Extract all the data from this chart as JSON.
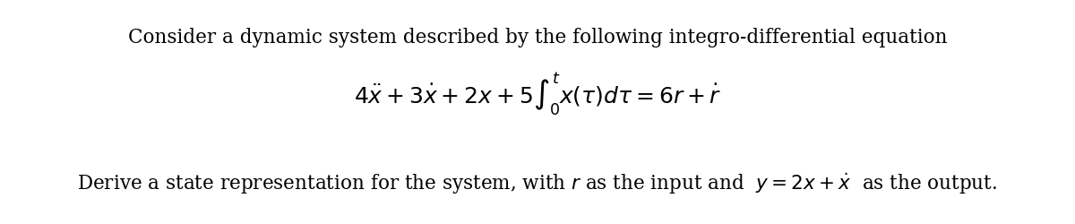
{
  "line1": "Consider a dynamic system described by the following integro-differential equation",
  "equation": "4\\ddot{x}+3\\dot{x}+2x+5\\int_{0}^{t}x(\\tau)d\\tau = 6r +\\dot{r}",
  "line3_prefix": "Derive a state representation for the system, with ",
  "line3_r": "r",
  "line3_middle": " as the input and  ",
  "line3_eq": "y = 2x + \\dot{x}",
  "line3_suffix": "  as the output.",
  "bg_color": "#ffffff",
  "text_color": "#000000",
  "font_size_text": 15.5,
  "font_size_eq": 18,
  "fig_width": 12.0,
  "fig_height": 2.5,
  "dpi": 100
}
